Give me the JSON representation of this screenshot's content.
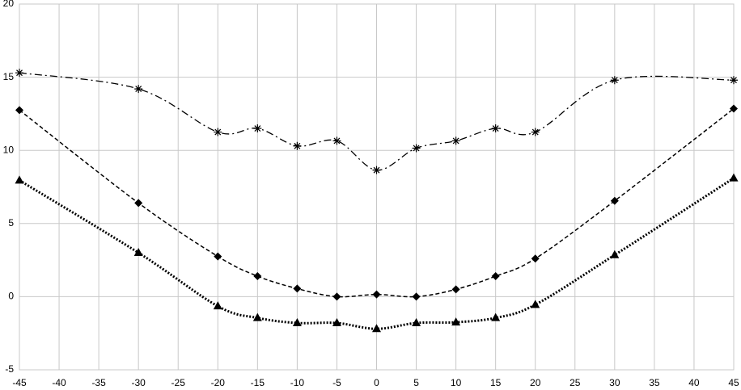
{
  "chart_data": {
    "type": "line",
    "x": [
      -45,
      -30,
      -20,
      -15,
      -10,
      -5,
      0,
      5,
      10,
      15,
      20,
      30,
      45
    ],
    "series": [
      {
        "color": "#000000",
        "marker": "asterisk",
        "dash": "dash-dot",
        "values": [
          15.3,
          14.2,
          11.25,
          11.5,
          10.3,
          10.65,
          8.65,
          10.15,
          10.65,
          11.5,
          11.25,
          14.8,
          14.8
        ]
      },
      {
        "color": "#000000",
        "marker": "diamond",
        "dash": "dash",
        "values": [
          12.75,
          6.4,
          2.75,
          1.4,
          0.55,
          0,
          0.15,
          0,
          0.5,
          1.4,
          2.6,
          6.55,
          12.85
        ]
      },
      {
        "color": "#000000",
        "marker": "triangle",
        "dash": "dot",
        "values": [
          7.95,
          3.0,
          -0.65,
          -1.45,
          -1.8,
          -1.8,
          -2.2,
          -1.8,
          -1.75,
          -1.45,
          -0.55,
          2.85,
          8.1
        ]
      }
    ],
    "xlim": [
      -45,
      45
    ],
    "xticks": [
      -45,
      -40,
      -35,
      -30,
      -25,
      -20,
      -15,
      -10,
      -5,
      0,
      5,
      10,
      15,
      20,
      25,
      30,
      35,
      40,
      45
    ],
    "ylim": [
      -5,
      20
    ],
    "yticks": [
      -5,
      0,
      5,
      10,
      15,
      20
    ],
    "grid": true
  }
}
